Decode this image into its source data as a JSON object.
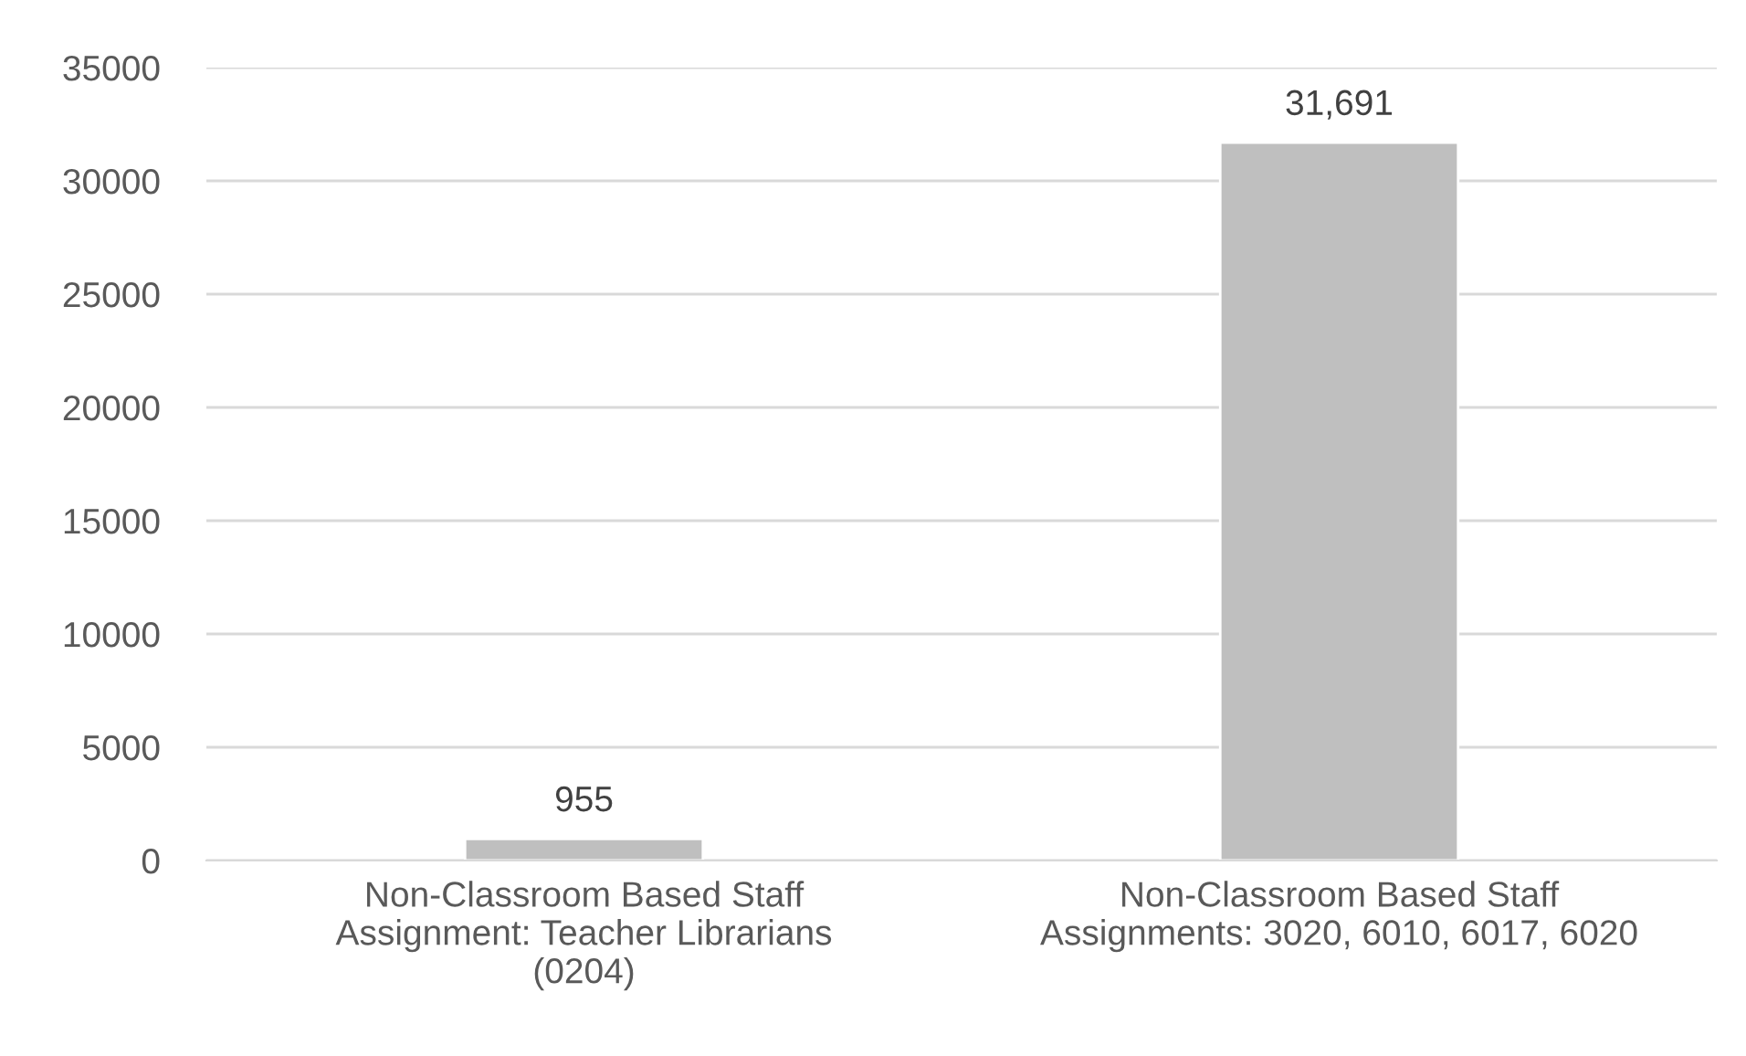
{
  "chart_data": {
    "type": "bar",
    "categories": [
      "Non-Classroom Based Staff\nAssignment: Teacher Librarians\n(0204)",
      "Non-Classroom Based Staff\nAssignments: 3020, 6010, 6017, 6020"
    ],
    "values": [
      955,
      31691
    ],
    "value_labels": [
      "955",
      "31,691"
    ],
    "color": "#bfbfbf",
    "ylim": [
      0,
      35000
    ],
    "yticks": [
      0,
      5000,
      10000,
      15000,
      20000,
      25000,
      30000,
      35000
    ],
    "grid": "y"
  }
}
